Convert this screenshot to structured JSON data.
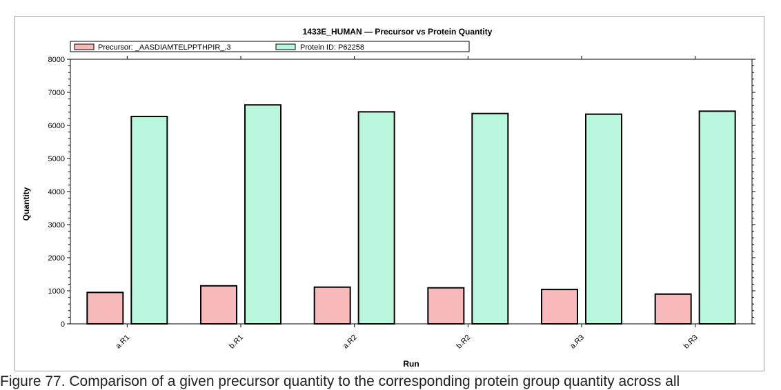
{
  "chart_data": {
    "type": "bar",
    "title": "1433E_HUMAN — Precursor vs Protein Quantity",
    "xlabel": "Run",
    "ylabel": "Quantity",
    "ylim": [
      0,
      8000
    ],
    "yticks": [
      0,
      1000,
      2000,
      3000,
      4000,
      5000,
      6000,
      7000,
      8000
    ],
    "categories": [
      "a.R1",
      "b.R1",
      "a.R2",
      "b.R2",
      "a.R3",
      "b.R3"
    ],
    "series": [
      {
        "name": "Precursor: _AASDIAMTELPPTHPIR_.3",
        "color": "#f7b9b9",
        "values": [
          950,
          1150,
          1110,
          1090,
          1040,
          900
        ]
      },
      {
        "name": "Protein ID: P62258",
        "color": "#b9f7dc",
        "values": [
          6270,
          6620,
          6410,
          6360,
          6340,
          6430
        ]
      }
    ],
    "legend_position": "top-left",
    "grid": false
  },
  "caption": "Figure 77. Comparison of a given precursor quantity to the corresponding protein group quantity across all"
}
